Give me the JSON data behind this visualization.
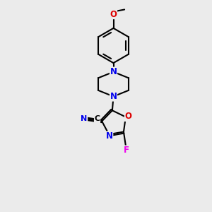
{
  "bg_color": "#ebebeb",
  "bond_color": "#000000",
  "bond_width": 1.5,
  "atom_colors": {
    "N": "#0000ee",
    "O": "#dd0000",
    "F": "#ee00ee",
    "C": "#000000"
  },
  "font_size": 8.5
}
